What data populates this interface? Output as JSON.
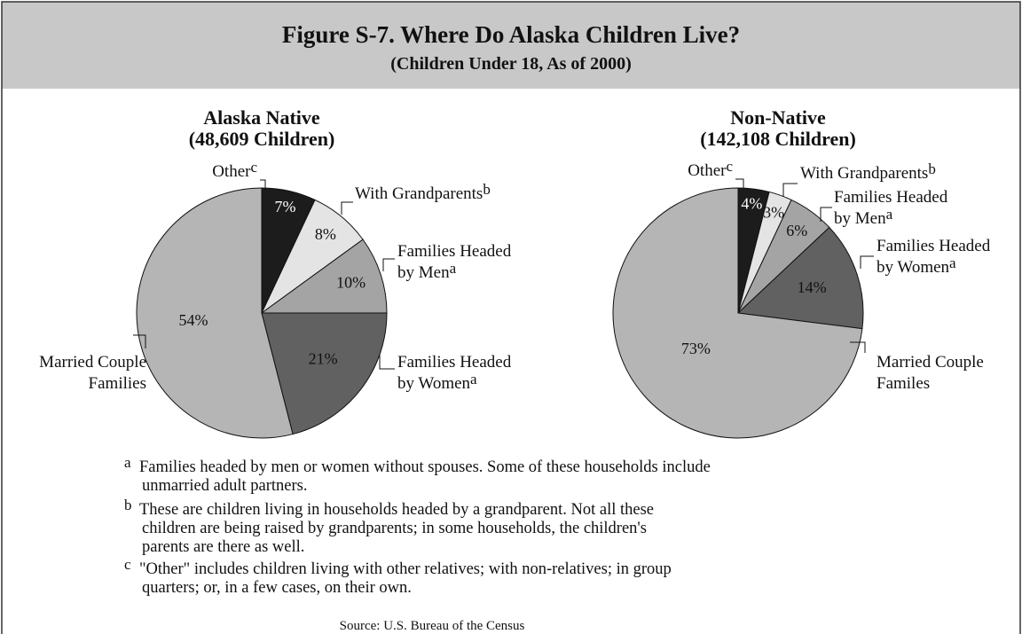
{
  "header": {
    "title": "Figure S-7. Where Do Alaska Children Live?",
    "subtitle": "(Children Under 18, As of 2000)"
  },
  "chart_data": [
    {
      "type": "pie",
      "title": "Alaska Native",
      "subtitle": "(48,609 Children)",
      "categories": [
        [
          "Other"
        ],
        [
          "With Grandparents"
        ],
        [
          "Families Headed",
          "by Men"
        ],
        [
          "Families Headed",
          "by Women"
        ],
        [
          "Married Couple",
          "Families"
        ]
      ],
      "notes": [
        "c",
        "b",
        "a",
        "a",
        null
      ],
      "values": [
        7,
        8,
        10,
        21,
        54
      ],
      "value_labels": [
        "7%",
        "8%",
        "10%",
        "21%",
        "54%"
      ],
      "colors": [
        "#1c1c1c",
        "#e4e4e4",
        "#a4a4a4",
        "#616161",
        "#b5b5b5"
      ]
    },
    {
      "type": "pie",
      "title": "Non-Native",
      "subtitle": "(142,108 Children)",
      "categories": [
        [
          "Other"
        ],
        [
          "With Grandparents"
        ],
        [
          "Families Headed",
          "by Men"
        ],
        [
          "Families Headed",
          "by Women"
        ],
        [
          "Married Couple",
          "Familes"
        ]
      ],
      "notes": [
        "c",
        "b",
        "a",
        "a",
        null
      ],
      "values": [
        4,
        3,
        6,
        14,
        73
      ],
      "value_labels": [
        "4%",
        "3%",
        "6%",
        "14%",
        "73%"
      ],
      "colors": [
        "#1c1c1c",
        "#e4e4e4",
        "#a4a4a4",
        "#616161",
        "#b5b5b5"
      ]
    }
  ],
  "footnotes": [
    {
      "mark": "a",
      "lines": [
        "Families headed by men or women without spouses. Some of these households include",
        "unmarried adult partners."
      ]
    },
    {
      "mark": "b",
      "lines": [
        "These are children living in households headed by a grandparent. Not all these",
        "children are being raised by grandparents; in some households, the children's",
        "parents are there as well."
      ]
    },
    {
      "mark": "c",
      "lines": [
        "\"Other\" includes children living with other relatives; with non-relatives; in group",
        "quarters; or,  in a few cases, on their own."
      ]
    }
  ],
  "source": "Source: U.S. Bureau of the Census"
}
